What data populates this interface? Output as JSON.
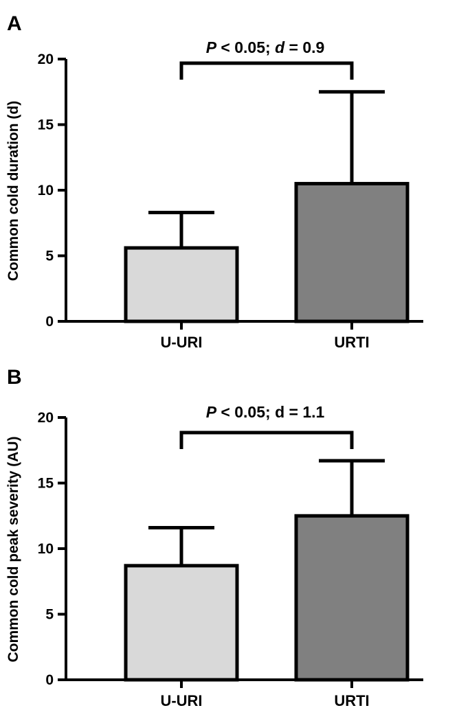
{
  "chart_data": [
    {
      "panel": "A",
      "type": "bar",
      "ylabel": "Common cold duration (d)",
      "xlabel": "",
      "categories": [
        "U-URI",
        "URTI"
      ],
      "values": [
        5.6,
        10.5
      ],
      "error_upper": [
        8.3,
        17.5
      ],
      "ylim": [
        0,
        20
      ],
      "yticks": [
        "0",
        "5",
        "10",
        "15",
        "20"
      ],
      "bar_colors": [
        "#d9d9d9",
        "#808080"
      ],
      "annotation": {
        "p_sym": "P",
        "p_rest": " < 0.05; ",
        "d_sym": "d",
        "d_rest": " = 0.9"
      },
      "grid": false,
      "legend": "none"
    },
    {
      "panel": "B",
      "type": "bar",
      "ylabel": "Common cold peak severity (AU)",
      "xlabel": "",
      "categories": [
        "U-URI",
        "URTI"
      ],
      "values": [
        8.7,
        12.5
      ],
      "error_upper": [
        11.6,
        16.7
      ],
      "ylim": [
        0,
        20
      ],
      "yticks": [
        "0",
        "5",
        "10",
        "15",
        "20"
      ],
      "bar_colors": [
        "#d9d9d9",
        "#808080"
      ],
      "annotation": {
        "p_sym": "P",
        "p_rest": " < 0.05; ",
        "d_sym": "",
        "d_rest": "d = 1.1"
      },
      "grid": false,
      "legend": "none"
    }
  ]
}
